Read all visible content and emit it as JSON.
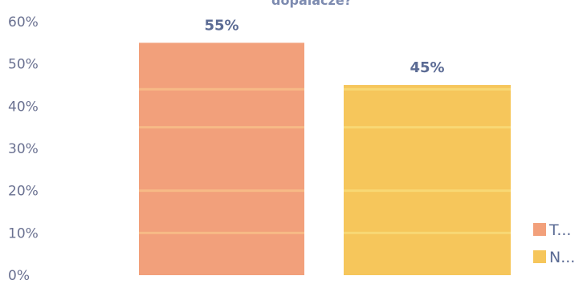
{
  "chart_data": {
    "type": "bar",
    "title": "dopalacze?",
    "categories": [
      "T...",
      "N..."
    ],
    "values": [
      55,
      45
    ],
    "value_labels": [
      "55%",
      "45%"
    ],
    "colors": [
      "#f2a07b",
      "#f6c65b"
    ],
    "y_ticks": [
      "0%",
      "10%",
      "20%",
      "30%",
      "40%",
      "50%",
      "60%"
    ],
    "ylim": [
      0,
      60
    ],
    "grid": false,
    "legend": {
      "position": "bottom-right",
      "entries": [
        {
          "label": "T...",
          "color": "#f2a07b"
        },
        {
          "label": "N...",
          "color": "#f6c65b"
        }
      ]
    }
  }
}
